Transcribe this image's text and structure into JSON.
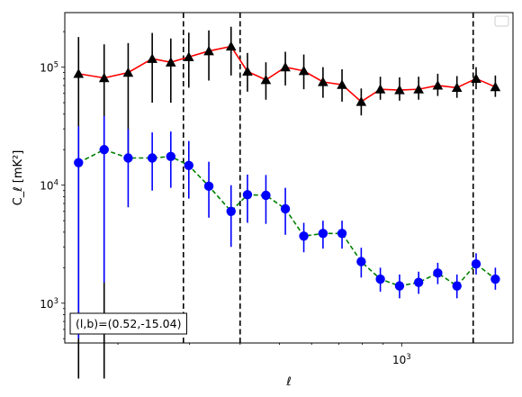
{
  "chart_data": {
    "type": "scatter",
    "xscale": "log",
    "yscale": "log",
    "xlim": [
      148,
      1880
    ],
    "ylim": [
      460,
      290000
    ],
    "xlabel": "ℓ",
    "ylabel": "C_ℓ [mK²]",
    "x_tick_labels": [
      {
        "value": 1000,
        "mantissa": "10",
        "exponent": "3"
      }
    ],
    "y_tick_labels": [
      {
        "value": 1000,
        "mantissa": "10",
        "exponent": "3"
      },
      {
        "value": 10000,
        "mantissa": "10",
        "exponent": "4"
      },
      {
        "value": 100000,
        "mantissa": "10",
        "exponent": "5"
      }
    ],
    "grid": false,
    "legend": {
      "placement": "top-right",
      "entries": []
    },
    "annotation": {
      "text": "(l,b)=(0.52,-15.04)",
      "placement": "bottom-left"
    },
    "vlines": [
      290,
      400,
      1500
    ],
    "series": [
      {
        "marker": "triangle",
        "color": "#000000",
        "line_color": "#ff0000",
        "line_style": "solid",
        "x": [
          160,
          185,
          212,
          243,
          270,
          299,
          335,
          380,
          417,
          463,
          517,
          574,
          640,
          713,
          795,
          886,
          988,
          1101,
          1227,
          1368,
          1525,
          1701
        ],
        "y": [
          88000,
          81000,
          90000,
          118000,
          110000,
          122000,
          137000,
          150000,
          92000,
          78000,
          100000,
          93000,
          75000,
          71000,
          51000,
          65000,
          64000,
          65000,
          70000,
          67000,
          80000,
          68000
        ],
        "yerr_low": [
          88000,
          81000,
          72000,
          68000,
          60000,
          55000,
          60000,
          65000,
          30000,
          25000,
          30000,
          28000,
          20000,
          20000,
          12000,
          12000,
          12000,
          12000,
          13000,
          12000,
          15000,
          12000
        ],
        "yerr_high": [
          92000,
          75000,
          70000,
          77000,
          65000,
          74000,
          68000,
          70000,
          40000,
          32000,
          35000,
          35000,
          25000,
          25000,
          15000,
          18000,
          18000,
          18000,
          18000,
          17000,
          20000,
          17000
        ]
      },
      {
        "marker": "circle",
        "color": "#0000ff",
        "line_color": "#008000",
        "line_style": "dashed",
        "x": [
          160,
          185,
          212,
          243,
          270,
          299,
          335,
          380,
          417,
          463,
          517,
          574,
          640,
          713,
          795,
          886,
          988,
          1101,
          1227,
          1368,
          1525,
          1701
        ],
        "y": [
          15500,
          20000,
          17000,
          17000,
          17500,
          14700,
          9800,
          6000,
          8300,
          8200,
          6300,
          3700,
          3900,
          3900,
          2250,
          1600,
          1400,
          1500,
          1800,
          1400,
          2150,
          1600
        ],
        "yerr_low": [
          15000,
          18500,
          10500,
          8000,
          8000,
          7000,
          4500,
          3000,
          3500,
          3500,
          2500,
          1000,
          1000,
          1000,
          600,
          350,
          300,
          300,
          350,
          300,
          400,
          300
        ],
        "yerr_high": [
          16000,
          18500,
          13000,
          11000,
          11000,
          9000,
          6000,
          4000,
          4000,
          4000,
          3200,
          1100,
          1100,
          1100,
          700,
          400,
          350,
          350,
          400,
          350,
          500,
          400
        ]
      }
    ]
  }
}
